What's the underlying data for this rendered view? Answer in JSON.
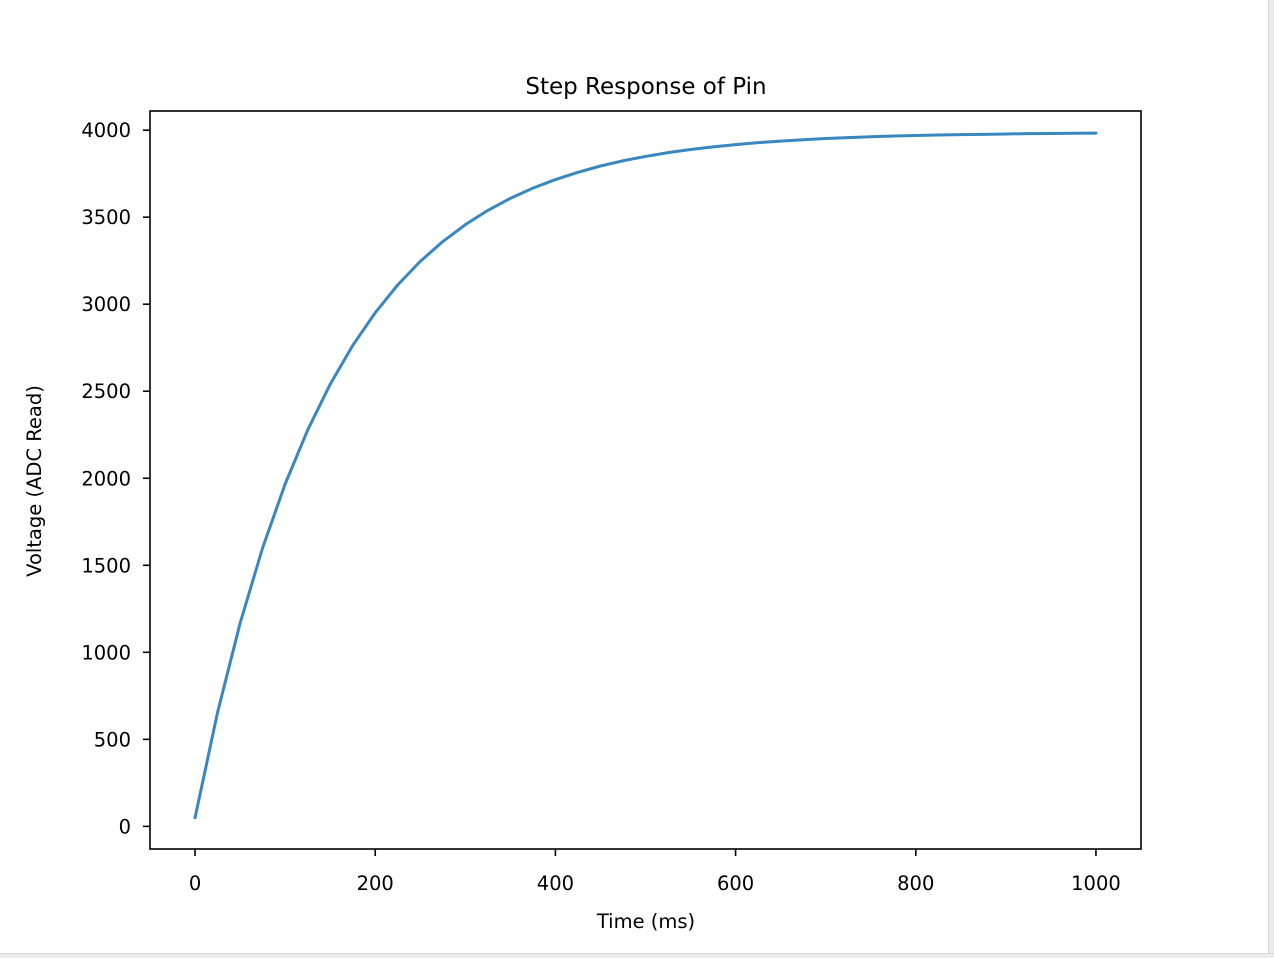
{
  "chart_data": {
    "type": "line",
    "title": "Step Response of Pin",
    "xlabel": "Time (ms)",
    "ylabel": "Voltage (ADC Read)",
    "xlim": [
      -50,
      1050
    ],
    "ylim": [
      -130,
      4110
    ],
    "xticks": [
      0,
      200,
      400,
      600,
      800,
      1000
    ],
    "yticks": [
      0,
      500,
      1000,
      1500,
      2000,
      2500,
      3000,
      3500,
      4000
    ],
    "grid": false,
    "series": [
      {
        "color": "#3a87c0",
        "x": [
          0,
          25,
          50,
          75,
          100,
          125,
          150,
          175,
          200,
          225,
          250,
          275,
          300,
          325,
          350,
          375,
          400,
          425,
          450,
          475,
          500,
          525,
          550,
          575,
          600,
          625,
          650,
          675,
          700,
          725,
          750,
          775,
          800,
          825,
          850,
          875,
          900,
          925,
          950,
          975,
          1000
        ],
        "values": [
          50,
          655,
          1167,
          1600,
          1967,
          2277,
          2540,
          2763,
          2951,
          3111,
          3246,
          3360,
          3457,
          3539,
          3608,
          3667,
          3716,
          3758,
          3794,
          3824,
          3849,
          3871,
          3889,
          3904,
          3917,
          3928,
          3937,
          3945,
          3952,
          3957,
          3962,
          3966,
          3969,
          3972,
          3974,
          3976,
          3978,
          3980,
          3981,
          3982,
          3983
        ]
      }
    ]
  }
}
